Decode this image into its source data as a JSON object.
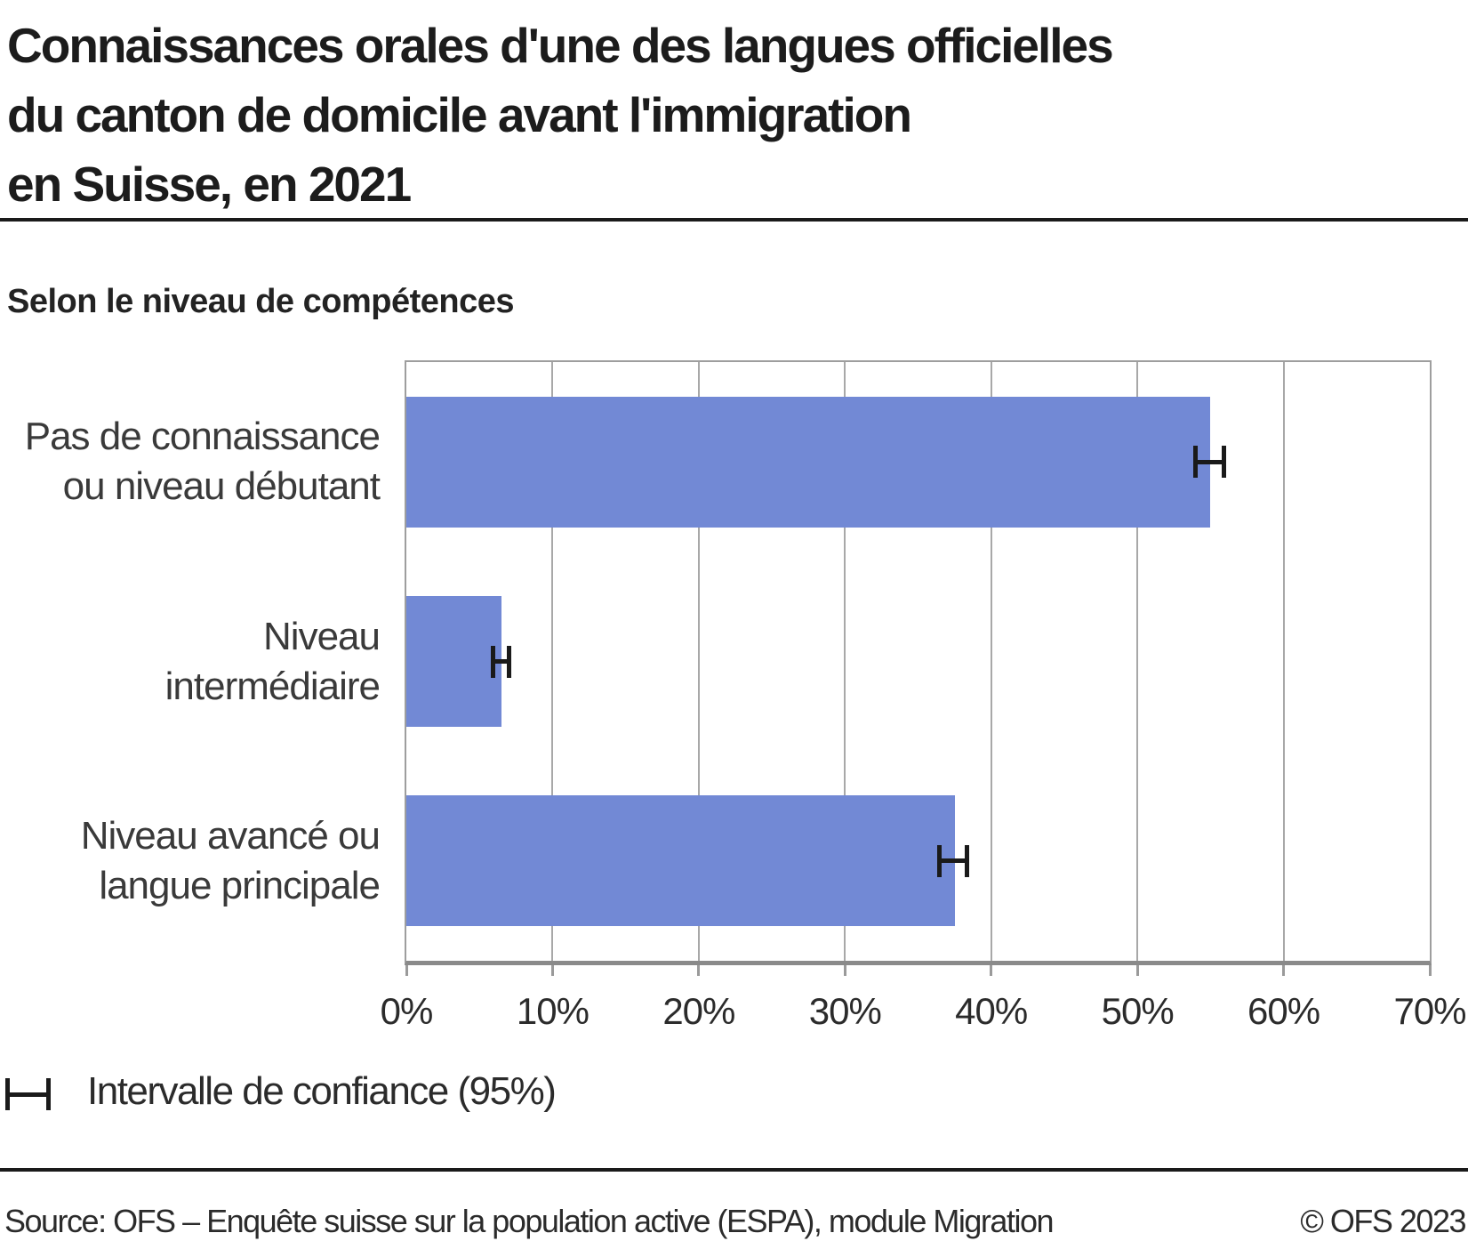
{
  "title_lines": [
    "Connaissances orales d'une des langues officielles",
    "du canton de domicile avant l'immigration",
    "en Suisse, en 2021"
  ],
  "title": "Connaissances orales d'une des langues officielles du canton de domicile avant l'immigration en Suisse, en 2021",
  "subtitle": "Selon le niveau de compétences",
  "legend": {
    "icon": "confidence-interval-error-bar",
    "label": "Intervalle de confiance (95%)"
  },
  "footer": {
    "source": "Source: OFS – Enquête suisse sur la population active (ESPA), module Migration",
    "copyright": "© OFS 2023"
  },
  "colors": {
    "bar": "#7289d5",
    "error_bar": "#1a1a1a",
    "gridline": "#a8a8a8",
    "plot_border": "#9e9e9e",
    "axis_line": "#8a8a8a",
    "rule": "#1a1a1a",
    "title_text": "#1c1c1c",
    "axis_text": "#2b2b2b",
    "category_text": "#3a3a3a"
  },
  "chart_data": {
    "type": "bar",
    "orientation": "horizontal",
    "title": "Connaissances orales d'une des langues officielles du canton de domicile avant l'immigration en Suisse, en 2021",
    "subtitle": "Selon le niveau de compétences",
    "categories": [
      "Pas de connaissance ou niveau débutant",
      "Niveau intermédiaire",
      "Niveau avancé ou langue principale"
    ],
    "category_lines": [
      [
        "Pas de connaissance",
        "ou niveau débutant"
      ],
      [
        "Niveau",
        "intermédiaire"
      ],
      [
        "Niveau avancé ou",
        "langue principale"
      ]
    ],
    "values": [
      55.0,
      6.5,
      37.5
    ],
    "confidence_intervals": [
      [
        53.8,
        56.1
      ],
      [
        5.8,
        7.2
      ],
      [
        36.3,
        38.5
      ]
    ],
    "confidence_level": "95%",
    "value_unit": "%",
    "xlim": [
      0,
      70
    ],
    "xticks": [
      0,
      10,
      20,
      30,
      40,
      50,
      60,
      70
    ],
    "xtick_labels": [
      "0%",
      "10%",
      "20%",
      "30%",
      "40%",
      "50%",
      "60%",
      "70%"
    ],
    "grid": "vertical",
    "legend_position": "bottom-left"
  }
}
